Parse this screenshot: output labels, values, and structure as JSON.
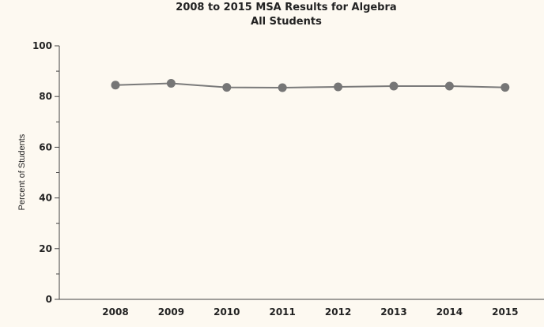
{
  "chart_data": {
    "type": "line",
    "title": "2008 to 2015 MSA Results for Algebra",
    "subtitle": "All Students",
    "xlabel": "",
    "ylabel": "Percent of Students",
    "categories": [
      "2008",
      "2009",
      "2010",
      "2011",
      "2012",
      "2013",
      "2014",
      "2015"
    ],
    "series": [
      {
        "values": [
          84.5,
          85.2,
          83.6,
          83.5,
          83.8,
          84.1,
          84.1,
          83.6
        ]
      }
    ],
    "ylim": [
      0,
      100
    ],
    "yticks": [
      0,
      20,
      40,
      60,
      80,
      100
    ],
    "grid": false,
    "legend": "none",
    "colors": {
      "background": "#fdf9f1",
      "line": "#7a7a7a",
      "marker": "#767676",
      "axis": "#444444",
      "text": "#222222"
    }
  }
}
